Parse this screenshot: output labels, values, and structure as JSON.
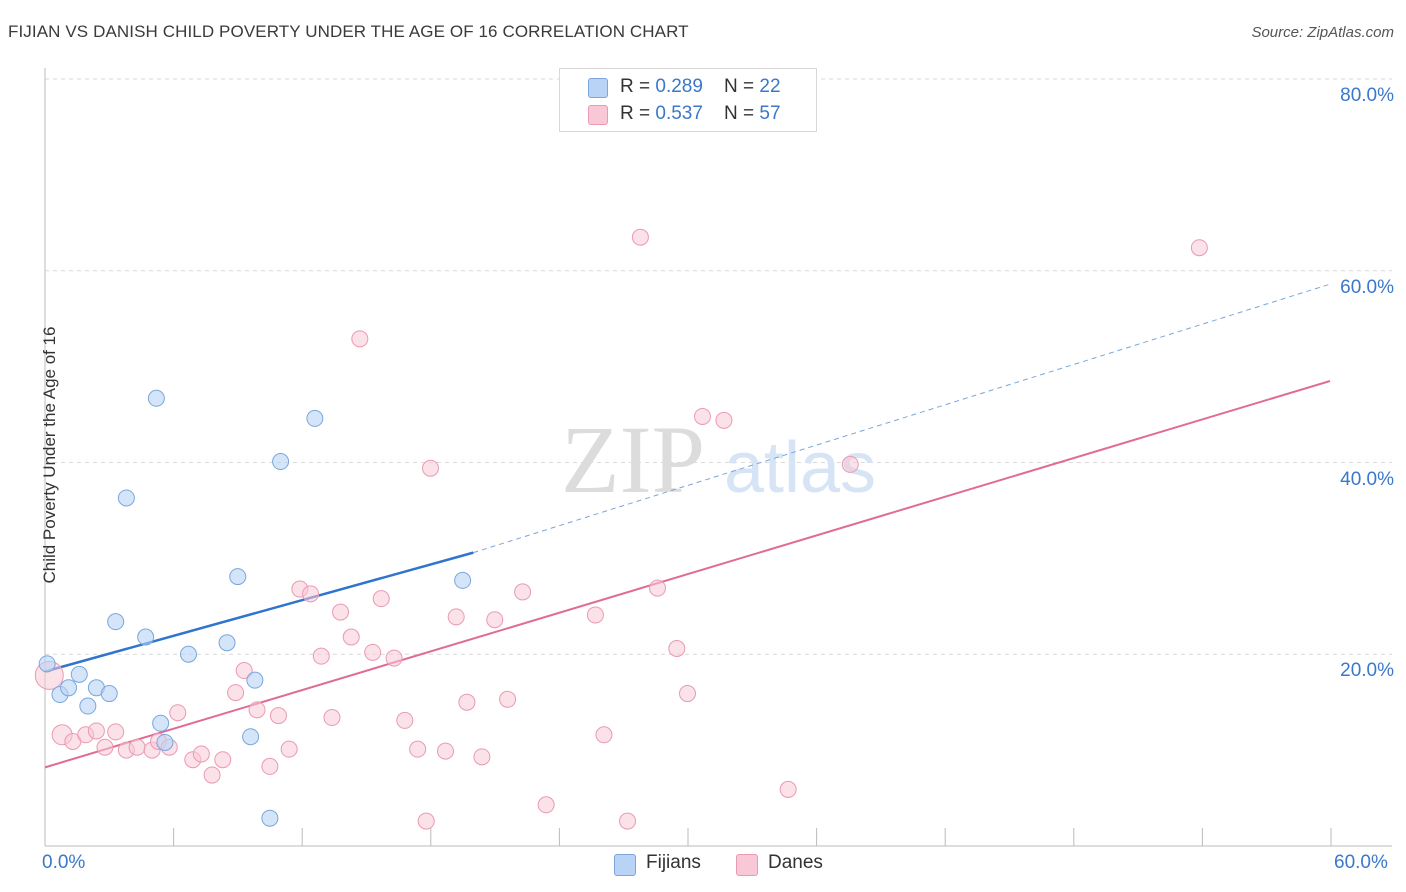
{
  "header": {
    "title": "FIJIAN VS DANISH CHILD POVERTY UNDER THE AGE OF 16 CORRELATION CHART",
    "source": "Source: ZipAtlas.com"
  },
  "watermark": {
    "zip": "ZIP",
    "atlas": "atlas"
  },
  "legend": {
    "rows": [
      {
        "r_label": "R = ",
        "r_value": "0.289",
        "n_label": "N = ",
        "n_value": "22"
      },
      {
        "r_label": "R = ",
        "r_value": "0.537",
        "n_label": "N = ",
        "n_value": "57"
      }
    ]
  },
  "bottom_legend": {
    "series1": "Fijians",
    "series2": "Danes"
  },
  "colors": {
    "fijians_fill": "#b8d3f5",
    "fijians_stroke": "#7aa6dc",
    "fijians_line": "#2f74cf",
    "danes_fill": "#f8c8d6",
    "danes_stroke": "#ea9ab3",
    "danes_line": "#e06b94",
    "grid": "#d9d9d9",
    "axis_text": "#3b78c9"
  },
  "chart_data": {
    "type": "scatter",
    "title": "FIJIAN VS DANISH CHILD POVERTY UNDER THE AGE OF 16 CORRELATION CHART",
    "xlabel": "",
    "ylabel": "Child Poverty Under the Age of 16",
    "xlim": [
      0,
      60
    ],
    "ylim": [
      0,
      80
    ],
    "x_tick_labels": [
      "0.0%",
      "60.0%"
    ],
    "y_ticks": [
      20,
      40,
      60,
      80
    ],
    "y_tick_labels": [
      "20.0%",
      "40.0%",
      "60.0%",
      "80.0%"
    ],
    "grid": true,
    "legend_position": "top-center",
    "series": [
      {
        "name": "Fijians",
        "r": 0.289,
        "n": 22,
        "trend": {
          "x0": 0,
          "y0": 18.2,
          "x1": 20,
          "y1": 30.6,
          "dashed_to_x": 60,
          "dashed_to_y": 58.6
        },
        "points": [
          [
            0.1,
            19.0
          ],
          [
            0.7,
            15.8
          ],
          [
            1.1,
            16.5
          ],
          [
            1.6,
            17.9
          ],
          [
            2.0,
            14.6
          ],
          [
            2.4,
            16.5
          ],
          [
            3.0,
            15.9
          ],
          [
            3.3,
            23.4
          ],
          [
            3.8,
            36.3
          ],
          [
            4.7,
            21.8
          ],
          [
            5.2,
            46.7
          ],
          [
            5.4,
            12.8
          ],
          [
            5.6,
            10.8
          ],
          [
            6.7,
            20.0
          ],
          [
            8.5,
            21.2
          ],
          [
            9.0,
            28.1
          ],
          [
            9.6,
            11.4
          ],
          [
            9.8,
            17.3
          ],
          [
            10.5,
            2.9
          ],
          [
            11.0,
            40.1
          ],
          [
            12.6,
            44.6
          ],
          [
            19.5,
            27.7
          ]
        ]
      },
      {
        "name": "Danes",
        "r": 0.537,
        "n": 57,
        "trend": {
          "x0": 0,
          "y0": 8.2,
          "x1": 60,
          "y1": 48.5
        },
        "points": [
          [
            0.2,
            17.8
          ],
          [
            0.8,
            11.6
          ],
          [
            1.3,
            10.9
          ],
          [
            1.9,
            11.6
          ],
          [
            2.4,
            12.0
          ],
          [
            2.8,
            10.3
          ],
          [
            3.3,
            11.9
          ],
          [
            3.8,
            10.0
          ],
          [
            4.3,
            10.3
          ],
          [
            5.0,
            10.0
          ],
          [
            5.3,
            10.9
          ],
          [
            5.8,
            10.3
          ],
          [
            6.2,
            13.9
          ],
          [
            6.9,
            9.0
          ],
          [
            7.3,
            9.6
          ],
          [
            7.8,
            7.4
          ],
          [
            8.3,
            9.0
          ],
          [
            8.9,
            16.0
          ],
          [
            9.3,
            18.3
          ],
          [
            9.9,
            14.2
          ],
          [
            10.5,
            8.3
          ],
          [
            10.9,
            13.6
          ],
          [
            11.4,
            10.1
          ],
          [
            11.9,
            26.8
          ],
          [
            12.4,
            26.3
          ],
          [
            12.9,
            19.8
          ],
          [
            13.4,
            13.4
          ],
          [
            13.8,
            24.4
          ],
          [
            14.3,
            21.8
          ],
          [
            14.7,
            52.9
          ],
          [
            15.3,
            20.2
          ],
          [
            15.7,
            25.8
          ],
          [
            16.3,
            19.6
          ],
          [
            16.8,
            13.1
          ],
          [
            17.4,
            10.1
          ],
          [
            17.8,
            2.6
          ],
          [
            18.0,
            39.4
          ],
          [
            18.7,
            9.9
          ],
          [
            19.2,
            23.9
          ],
          [
            19.7,
            15.0
          ],
          [
            20.4,
            9.3
          ],
          [
            21.0,
            23.6
          ],
          [
            21.6,
            15.3
          ],
          [
            22.3,
            26.5
          ],
          [
            23.4,
            4.3
          ],
          [
            25.7,
            24.1
          ],
          [
            26.1,
            11.6
          ],
          [
            27.2,
            2.6
          ],
          [
            27.8,
            63.5
          ],
          [
            28.6,
            26.9
          ],
          [
            29.5,
            20.6
          ],
          [
            30.0,
            15.9
          ],
          [
            30.7,
            44.8
          ],
          [
            31.7,
            44.4
          ],
          [
            34.7,
            5.9
          ],
          [
            37.6,
            39.8
          ],
          [
            53.9,
            62.4
          ]
        ]
      }
    ]
  }
}
